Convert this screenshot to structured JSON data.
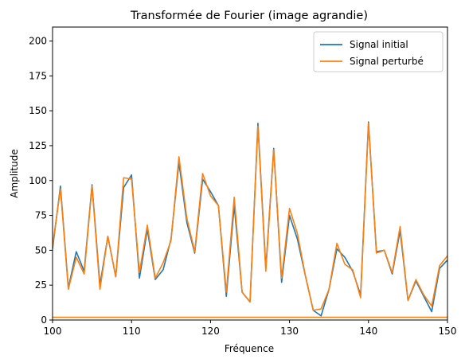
{
  "chart_data": {
    "type": "line",
    "title": "Transformée de Fourier (image agrandie)",
    "xlabel": "Fréquence",
    "ylabel": "Amplitude",
    "xlim": [
      100,
      150
    ],
    "ylim": [
      0,
      210
    ],
    "xticks": [
      100,
      110,
      120,
      130,
      140,
      150
    ],
    "yticks": [
      0,
      25,
      50,
      75,
      100,
      125,
      150,
      175,
      200
    ],
    "grid": false,
    "legend_position": "top-right",
    "x": [
      100,
      101,
      102,
      103,
      104,
      105,
      106,
      107,
      108,
      109,
      110,
      111,
      112,
      113,
      114,
      115,
      116,
      117,
      118,
      119,
      120,
      121,
      122,
      123,
      124,
      125,
      126,
      127,
      128,
      129,
      130,
      131,
      132,
      133,
      134,
      135,
      136,
      137,
      138,
      139,
      140,
      141,
      142,
      143,
      144,
      145,
      146,
      147,
      148,
      149,
      150
    ],
    "series": [
      {
        "name": "Signal initial",
        "color": "#1f77b4",
        "values": [
          51,
          96,
          23,
          49,
          35,
          97,
          25,
          60,
          31,
          95,
          104,
          30,
          65,
          29,
          36,
          58,
          113,
          70,
          48,
          101,
          92,
          82,
          17,
          82,
          20,
          13,
          141,
          37,
          123,
          27,
          75,
          58,
          32,
          7,
          3,
          22,
          51,
          45,
          35,
          18,
          142,
          49,
          50,
          33,
          64,
          14,
          28,
          17,
          6,
          37,
          43
        ]
      },
      {
        "name": "Signal perturbé",
        "color": "#ff7f0e",
        "values": [
          53,
          94,
          22,
          45,
          33,
          96,
          22,
          60,
          31,
          102,
          101,
          34,
          68,
          30,
          41,
          57,
          117,
          73,
          49,
          105,
          89,
          82,
          20,
          88,
          20,
          13,
          139,
          35,
          122,
          30,
          80,
          62,
          32,
          7,
          8,
          22,
          55,
          40,
          36,
          16,
          141,
          48,
          50,
          34,
          67,
          14,
          29,
          18,
          10,
          39,
          46
        ]
      },
      {
        "name": "",
        "color": "#ff7f0e",
        "values": [
          2,
          2,
          2,
          2,
          2,
          2,
          2,
          2,
          2,
          2,
          2,
          2,
          2,
          2,
          2,
          2,
          2,
          2,
          2,
          2,
          2,
          2,
          2,
          2,
          2,
          2,
          2,
          2,
          2,
          2,
          2,
          2,
          2,
          2,
          2,
          2,
          2,
          2,
          2,
          2,
          2,
          2,
          2,
          2,
          2,
          2,
          2,
          2,
          2,
          2,
          2
        ]
      }
    ]
  }
}
